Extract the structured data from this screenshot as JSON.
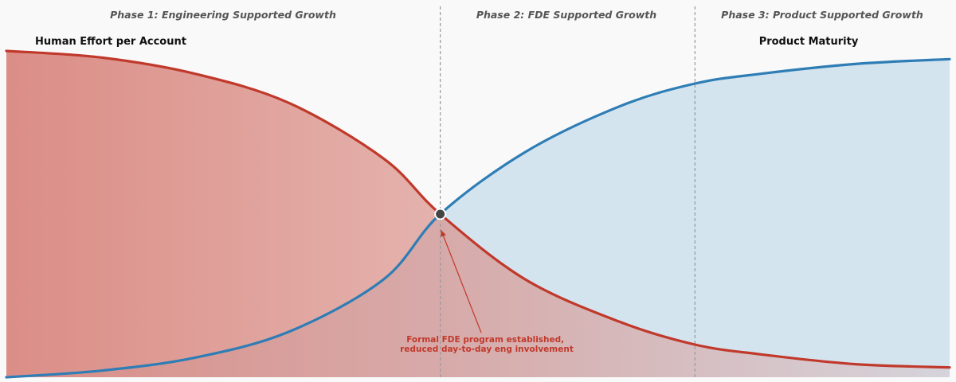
{
  "chart_data": {
    "type": "area",
    "title": "",
    "xlabel": "",
    "ylabel": "",
    "xlim": [
      0,
      1
    ],
    "ylim": [
      0,
      1
    ],
    "grid": false,
    "series": [
      {
        "name": "Human Effort per Account",
        "color": "#c0392b",
        "fill_color": "#d98880",
        "x": [
          0,
          0.1,
          0.2,
          0.3,
          0.4,
          0.46,
          0.55,
          0.65,
          0.73,
          0.8,
          0.9,
          1.0
        ],
        "y": [
          1.0,
          0.98,
          0.93,
          0.84,
          0.67,
          0.5,
          0.3,
          0.17,
          0.1,
          0.07,
          0.04,
          0.03
        ]
      },
      {
        "name": "Product Maturity",
        "color": "#2e7db5",
        "fill_color": "#d4e4ef",
        "x": [
          0,
          0.1,
          0.2,
          0.3,
          0.4,
          0.46,
          0.55,
          0.65,
          0.73,
          0.8,
          0.9,
          1.0
        ],
        "y": [
          0.0,
          0.02,
          0.06,
          0.14,
          0.3,
          0.5,
          0.69,
          0.83,
          0.9,
          0.93,
          0.96,
          0.975
        ]
      }
    ],
    "phases": [
      {
        "label": "Phase 1: Engineering Supported Growth",
        "start": 0,
        "end": 0.46
      },
      {
        "label": "Phase 2: FDE Supported Growth",
        "start": 0.46,
        "end": 0.73
      },
      {
        "label": "Phase 3: Product Supported Growth",
        "start": 0.73,
        "end": 1.0
      }
    ],
    "crossover": {
      "x": 0.46,
      "y": 0.5
    },
    "annotation": {
      "lines": [
        "Formal FDE program established,",
        "reduced day-to-day eng involvement"
      ],
      "color": "#c0392b",
      "points_to": {
        "x": 0.46,
        "y": 0.5
      }
    },
    "colors": {
      "background": "#f9f9f9",
      "divider": "#999999",
      "marker": "#444444"
    }
  }
}
